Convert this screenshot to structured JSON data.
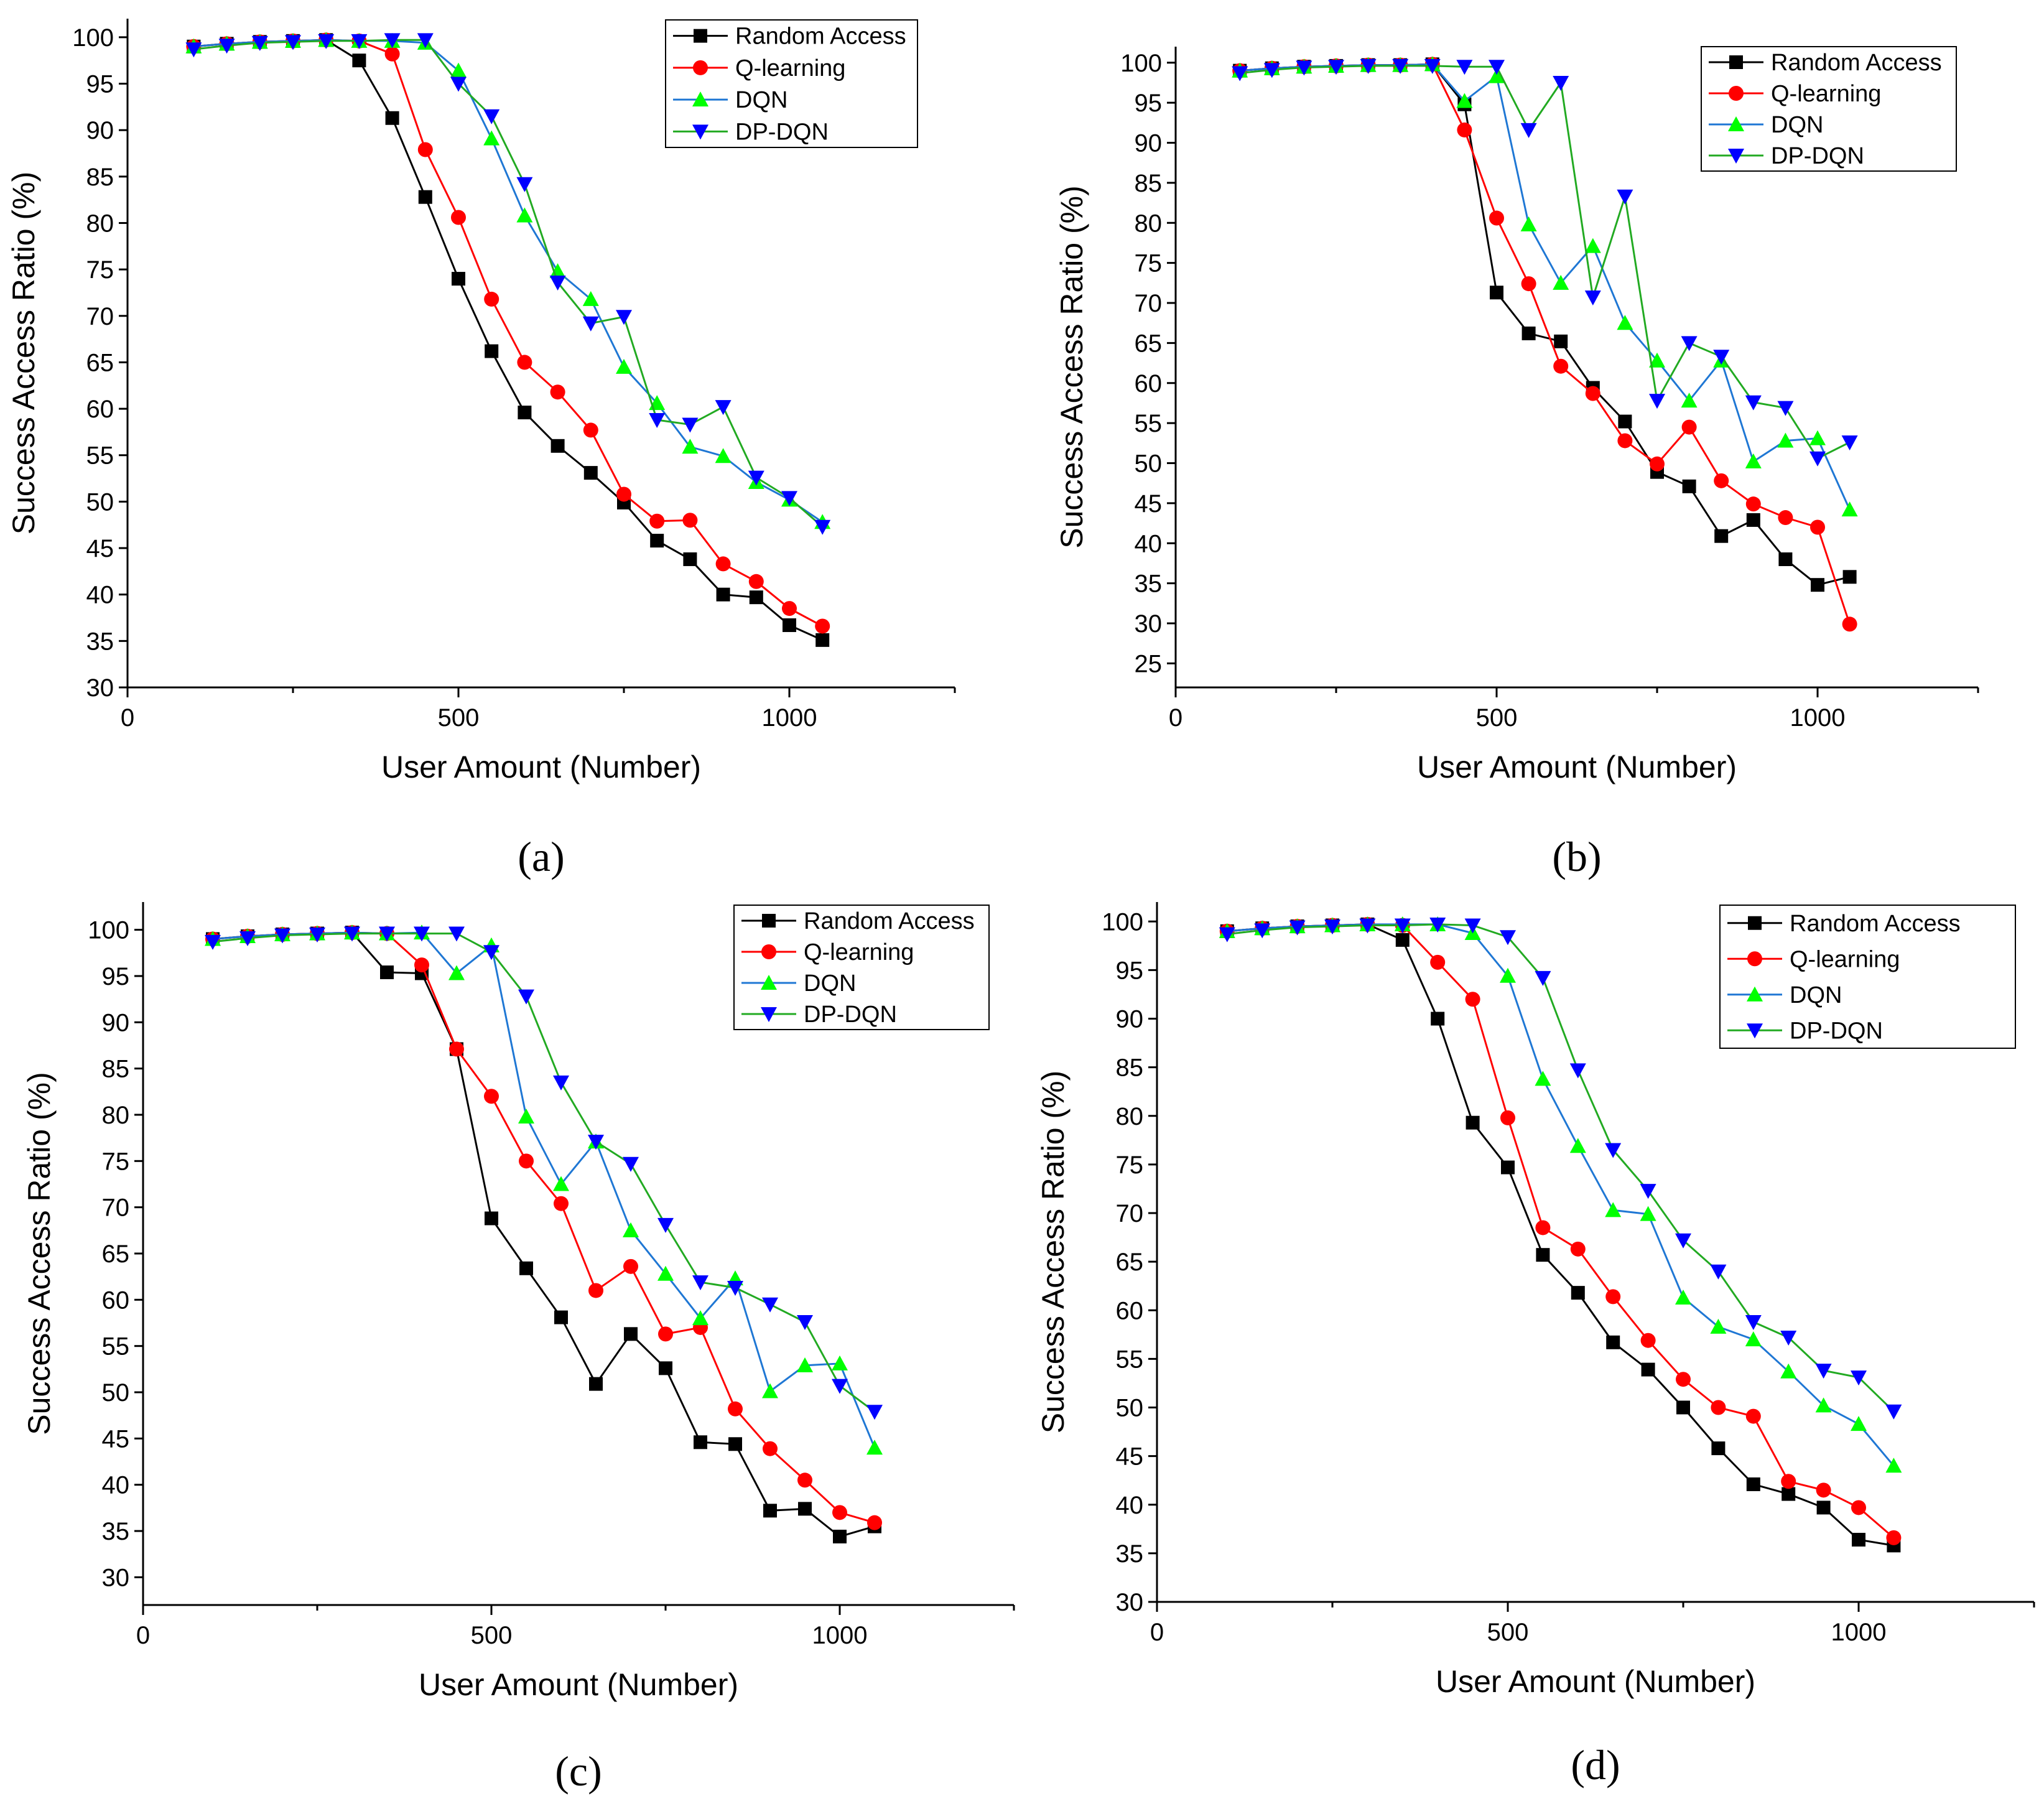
{
  "series_styles": [
    {
      "name": "Random Access",
      "line": "#000000",
      "marker": "#000000",
      "shape": "square"
    },
    {
      "name": "Q-learning",
      "line": "#ff0000",
      "marker": "#ff0000",
      "shape": "circle"
    },
    {
      "name": "DQN",
      "line": "#1f77d4",
      "marker": "#00ff00",
      "shape": "triangle-up"
    },
    {
      "name": "DP-DQN",
      "line": "#22aa22",
      "marker": "#0000ff",
      "shape": "triangle-down"
    }
  ],
  "chart_data": [
    {
      "type": "line",
      "caption": "(a)",
      "xlabel": "User Amount (Number)",
      "ylabel": "Success Access Ratio (%)",
      "xlim": [
        0,
        1250
      ],
      "ylim": [
        30,
        102
      ],
      "xticks": [
        0,
        500,
        1000
      ],
      "yticks": [
        30,
        35,
        40,
        45,
        50,
        55,
        60,
        65,
        70,
        75,
        80,
        85,
        90,
        95,
        100
      ],
      "legend_position": "top-right",
      "x": [
        100,
        150,
        200,
        250,
        300,
        350,
        400,
        450,
        500,
        550,
        600,
        650,
        700,
        750,
        800,
        850,
        900,
        950,
        1000,
        1050
      ],
      "series": [
        {
          "name": "Random Access",
          "values": [
            99,
            99.3,
            99.5,
            99.6,
            99.7,
            97.5,
            91.3,
            82.8,
            74,
            66.2,
            59.6,
            56,
            53.1,
            49.9,
            45.8,
            43.8,
            40,
            39.7,
            36.7,
            35.1
          ]
        },
        {
          "name": "Q-learning",
          "values": [
            99,
            99.3,
            99.5,
            99.6,
            99.7,
            99.6,
            98.2,
            87.9,
            80.6,
            71.8,
            65,
            61.8,
            57.7,
            50.8,
            47.9,
            48,
            43.3,
            41.4,
            38.5,
            36.6
          ]
        },
        {
          "name": "DQN",
          "values": [
            99,
            99.3,
            99.5,
            99.6,
            99.7,
            99.6,
            99.6,
            99.4,
            96.4,
            89.1,
            80.8,
            74.8,
            71.8,
            64.5,
            60.6,
            55.9,
            54.9,
            52.1,
            50.2,
            47.8
          ]
        },
        {
          "name": "DP-DQN",
          "values": [
            98.7,
            99.1,
            99.4,
            99.5,
            99.6,
            99.6,
            99.7,
            99.7,
            95,
            91.5,
            84.2,
            73.6,
            69.2,
            69.9,
            58.8,
            58.3,
            60.2,
            52.6,
            50.4,
            47.3
          ]
        }
      ]
    },
    {
      "type": "line",
      "caption": "(b)",
      "xlabel": "User Amount (Number)",
      "ylabel": "Success Access Ratio (%)",
      "xlim": [
        0,
        1250
      ],
      "ylim": [
        22,
        102
      ],
      "xticks": [
        0,
        500,
        1000
      ],
      "yticks": [
        25,
        30,
        35,
        40,
        45,
        50,
        55,
        60,
        65,
        70,
        75,
        80,
        85,
        90,
        95,
        100
      ],
      "legend_position": "top-right",
      "x": [
        100,
        150,
        200,
        250,
        300,
        350,
        400,
        450,
        500,
        550,
        600,
        650,
        700,
        750,
        800,
        850,
        900,
        950,
        1000,
        1050
      ],
      "series": [
        {
          "name": "Random Access",
          "values": [
            99,
            99.3,
            99.5,
            99.6,
            99.7,
            99.7,
            99.8,
            94.8,
            71.3,
            66.2,
            65.2,
            59.4,
            55.2,
            48.9,
            47.1,
            40.9,
            42.9,
            38,
            34.8,
            35.8
          ]
        },
        {
          "name": "Q-learning",
          "values": [
            99,
            99.3,
            99.5,
            99.6,
            99.7,
            99.7,
            99.8,
            91.6,
            80.6,
            72.4,
            62.1,
            58.7,
            52.8,
            49.9,
            54.5,
            47.8,
            44.9,
            43.2,
            42,
            29.9
          ]
        },
        {
          "name": "DQN",
          "values": [
            99,
            99.3,
            99.5,
            99.6,
            99.7,
            99.7,
            99.8,
            95.2,
            98.3,
            79.8,
            72.5,
            77.1,
            67.5,
            62.8,
            57.8,
            62.8,
            50.2,
            52.8,
            53.1,
            44.2
          ]
        },
        {
          "name": "DP-DQN",
          "values": [
            98.7,
            99.1,
            99.4,
            99.5,
            99.6,
            99.6,
            99.6,
            99.5,
            99.5,
            91.6,
            97.5,
            70.7,
            83.3,
            57.8,
            65,
            63.3,
            57.6,
            56.9,
            50.6,
            52.6
          ]
        }
      ]
    },
    {
      "type": "line",
      "caption": "(c)",
      "xlabel": "User Amount (Number)",
      "ylabel": "Success Access Ratio (%)",
      "xlim": [
        0,
        1250
      ],
      "ylim": [
        27,
        103
      ],
      "xticks": [
        0,
        500,
        1000
      ],
      "yticks": [
        30,
        35,
        40,
        45,
        50,
        55,
        60,
        65,
        70,
        75,
        80,
        85,
        90,
        95,
        100
      ],
      "legend_position": "top-right",
      "x": [
        100,
        150,
        200,
        250,
        300,
        350,
        400,
        450,
        500,
        550,
        600,
        650,
        700,
        750,
        800,
        850,
        900,
        950,
        1000,
        1050
      ],
      "series": [
        {
          "name": "Random Access",
          "values": [
            99,
            99.3,
            99.5,
            99.6,
            99.7,
            95.4,
            95.3,
            87.1,
            68.8,
            63.4,
            58.1,
            50.9,
            56.3,
            52.6,
            44.6,
            44.4,
            37.2,
            37.4,
            34.4,
            35.5
          ]
        },
        {
          "name": "Q-learning",
          "values": [
            99,
            99.3,
            99.5,
            99.6,
            99.7,
            99.6,
            96.2,
            87.1,
            82,
            75,
            70.4,
            61,
            63.6,
            56.3,
            57,
            48.2,
            43.9,
            40.5,
            37,
            35.9
          ]
        },
        {
          "name": "DQN",
          "values": [
            99,
            99.3,
            99.5,
            99.6,
            99.7,
            99.6,
            99.7,
            95.3,
            98.3,
            79.8,
            72.5,
            77.1,
            67.5,
            62.8,
            58,
            62.3,
            50.1,
            52.9,
            53.1,
            44
          ]
        },
        {
          "name": "DP-DQN",
          "values": [
            98.7,
            99.1,
            99.4,
            99.5,
            99.6,
            99.6,
            99.6,
            99.6,
            97.6,
            92.8,
            83.5,
            77.1,
            74.7,
            68.1,
            61.9,
            61.3,
            59.5,
            57.6,
            50.7,
            47.9
          ]
        }
      ]
    },
    {
      "type": "line",
      "caption": "(d)",
      "xlabel": "User Amount (Number)",
      "ylabel": "Success Access Ratio (%)",
      "xlim": [
        0,
        1250
      ],
      "ylim": [
        30,
        102
      ],
      "xticks": [
        0,
        500,
        1000
      ],
      "yticks": [
        30,
        35,
        40,
        45,
        50,
        55,
        60,
        65,
        70,
        75,
        80,
        85,
        90,
        95,
        100
      ],
      "legend_position": "top-right",
      "x": [
        100,
        150,
        200,
        250,
        300,
        350,
        400,
        450,
        500,
        550,
        600,
        650,
        700,
        750,
        800,
        850,
        900,
        950,
        1000,
        1050
      ],
      "series": [
        {
          "name": "Random Access",
          "values": [
            99,
            99.3,
            99.5,
            99.6,
            99.7,
            98.1,
            90,
            79.3,
            74.7,
            65.7,
            61.8,
            56.7,
            53.9,
            50,
            45.8,
            42.1,
            41.1,
            39.7,
            36.4,
            35.8
          ]
        },
        {
          "name": "Q-learning",
          "values": [
            99,
            99.3,
            99.5,
            99.6,
            99.7,
            99.6,
            95.8,
            92,
            79.8,
            68.5,
            66.3,
            61.4,
            56.9,
            52.9,
            50,
            49.1,
            42.4,
            41.5,
            39.7,
            36.6
          ]
        },
        {
          "name": "DQN",
          "values": [
            99,
            99.3,
            99.5,
            99.6,
            99.7,
            99.7,
            99.7,
            98.8,
            94.4,
            83.8,
            76.9,
            70.3,
            69.9,
            61.3,
            58.3,
            57,
            53.7,
            50.2,
            48.3,
            44
          ]
        },
        {
          "name": "DP-DQN",
          "values": [
            98.7,
            99.1,
            99.4,
            99.5,
            99.6,
            99.6,
            99.7,
            99.6,
            98.4,
            94.2,
            84.7,
            76.5,
            72.3,
            67.2,
            64,
            58.8,
            57.2,
            53.8,
            53.1,
            49.6
          ]
        }
      ]
    }
  ]
}
